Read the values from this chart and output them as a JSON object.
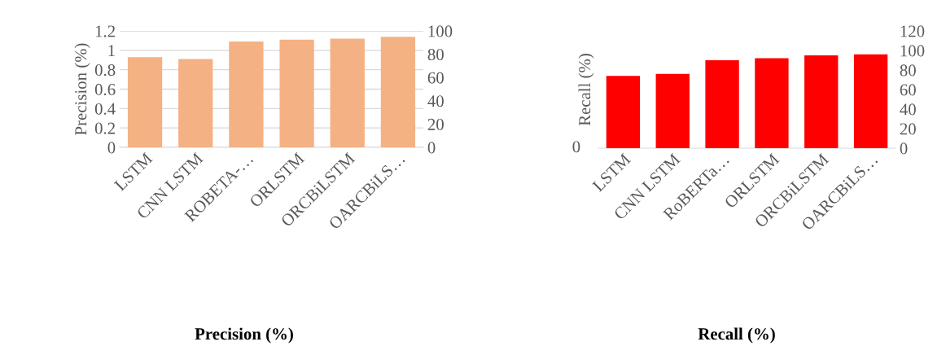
{
  "chart_data": [
    {
      "type": "bar",
      "title": "Precision (%)",
      "ylabel": "Precision (%)",
      "categories": [
        "LSTM",
        "CNN LSTM",
        "ROBETA-…",
        "ORLSTM",
        "ORCBiLSTM",
        "OARCBiLS…"
      ],
      "series": [
        {
          "color": "#f4b183",
          "values": [
            0.93,
            0.91,
            1.09,
            1.11,
            1.12,
            1.14
          ]
        }
      ],
      "ylim": [
        0,
        1.2
      ],
      "yticks": [
        0,
        0.2,
        0.4,
        0.6,
        0.8,
        1,
        1.2
      ],
      "y2lim": [
        0,
        100
      ],
      "y2ticks": [
        0,
        20,
        40,
        60,
        80,
        100
      ],
      "grid": "y"
    },
    {
      "type": "bar",
      "title": "Recall (%)",
      "ylabel": "Recall (%)",
      "categories": [
        "LSTM",
        "CNN LSTM",
        "RoBERTa…",
        "ORLSTM",
        "ORCBiLSTM",
        "OARCBiLS…"
      ],
      "series": [
        {
          "color": "#ff0000",
          "axis": "y2",
          "values": [
            74,
            76,
            90,
            92,
            95,
            96
          ]
        }
      ],
      "annotations": [
        "0"
      ],
      "y2lim": [
        0,
        120
      ],
      "y2ticks": [
        0,
        20,
        40,
        60,
        80,
        100,
        120
      ],
      "grid": false
    }
  ]
}
